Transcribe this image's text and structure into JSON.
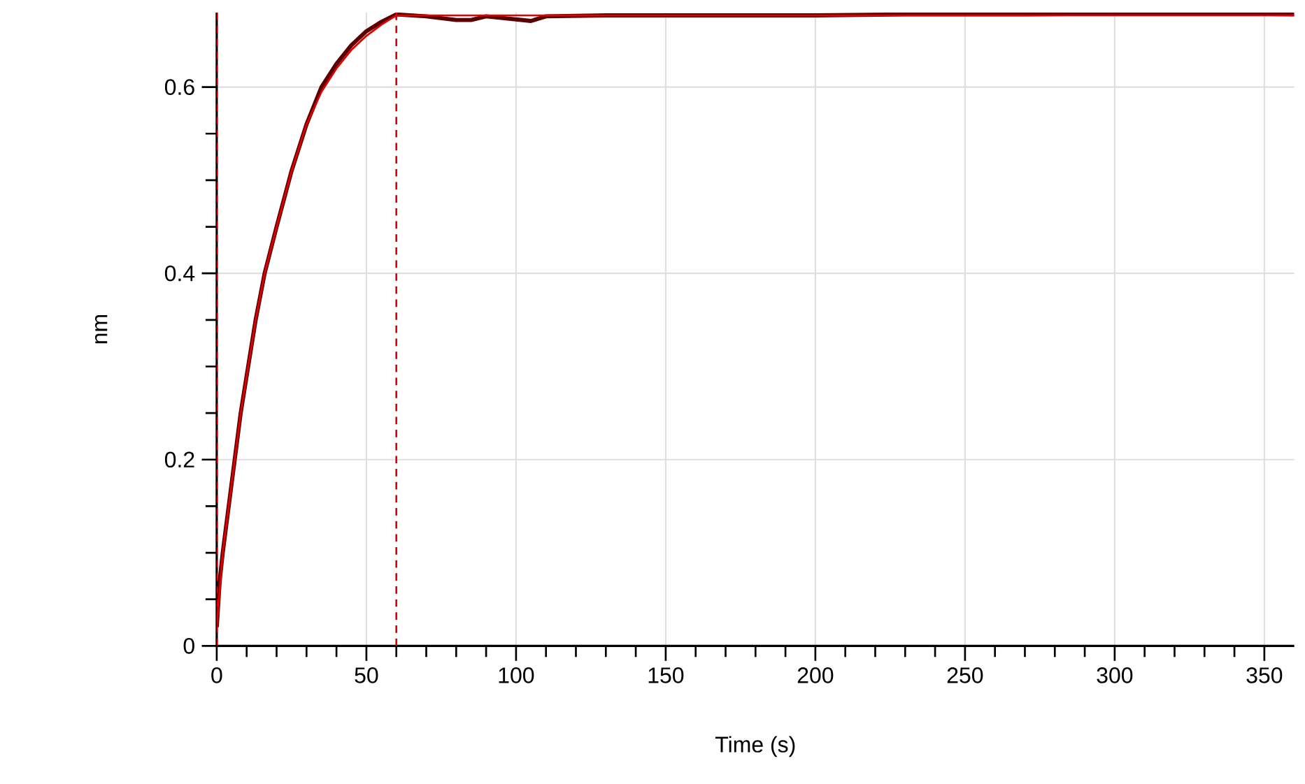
{
  "chart_data": {
    "type": "line",
    "xlabel": "Time (s)",
    "ylabel": "nm",
    "xlim": [
      0,
      360
    ],
    "ylim": [
      0,
      0.68
    ],
    "xticks": [
      0,
      50,
      100,
      150,
      200,
      250,
      300,
      350
    ],
    "yticks": [
      0,
      0.2,
      0.4,
      0.6
    ],
    "grid": true,
    "marker": "none",
    "line_style": "solid",
    "series": [
      {
        "color": "#5a0000",
        "x": [
          0,
          1,
          2,
          4,
          6,
          8,
          10,
          13,
          16,
          20,
          25,
          30,
          35,
          40,
          45,
          50,
          55,
          60,
          70,
          80,
          85,
          90,
          105,
          110,
          130,
          150,
          170,
          200,
          230,
          250,
          270,
          300,
          320,
          340,
          360
        ],
        "values": [
          0.02,
          0.07,
          0.1,
          0.15,
          0.2,
          0.25,
          0.29,
          0.35,
          0.4,
          0.45,
          0.51,
          0.56,
          0.6,
          0.625,
          0.645,
          0.66,
          0.67,
          0.678,
          0.676,
          0.672,
          0.672,
          0.676,
          0.671,
          0.676,
          0.677,
          0.677,
          0.677,
          0.677,
          0.678,
          0.678,
          0.678,
          0.679,
          0.679,
          0.679,
          0.678
        ]
      },
      {
        "color": "#e00000",
        "x": [
          0,
          1,
          2,
          4,
          6,
          8,
          10,
          13,
          16,
          20,
          25,
          30,
          35,
          40,
          45,
          50,
          55,
          60,
          100,
          150,
          200,
          250,
          300,
          360
        ],
        "values": [
          0.02,
          0.06,
          0.1,
          0.15,
          0.2,
          0.25,
          0.29,
          0.35,
          0.4,
          0.45,
          0.51,
          0.56,
          0.595,
          0.62,
          0.64,
          0.655,
          0.667,
          0.677,
          0.677,
          0.677,
          0.677,
          0.677,
          0.677,
          0.677
        ]
      }
    ],
    "ref_lines": [
      {
        "axis": "x",
        "value": 0,
        "color": "#e00000",
        "line_style": "dashed"
      },
      {
        "axis": "x",
        "value": 60,
        "color": "#e00000",
        "line_style": "dashed"
      }
    ]
  }
}
